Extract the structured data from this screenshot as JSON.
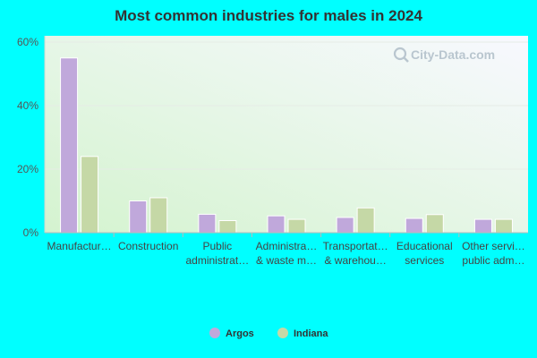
{
  "chart_data": {
    "type": "bar",
    "title": "Most common industries for males in 2024",
    "categories": [
      "Manufactur…",
      "Construction",
      "Public administrat…",
      "Administra… & waste m…",
      "Transportat… & warehou…",
      "Educational services",
      "Other servi… public adm…"
    ],
    "category_lines": [
      [
        "Manufactur…"
      ],
      [
        "Construction"
      ],
      [
        "Public",
        "administrat…"
      ],
      [
        "Administra…",
        "& waste m…"
      ],
      [
        "Transportat…",
        "& warehou…"
      ],
      [
        "Educational",
        "services"
      ],
      [
        "Other servi…",
        "public adm…"
      ]
    ],
    "series": [
      {
        "name": "Argos",
        "color": "#c0a8db",
        "values": [
          55,
          10,
          5.8,
          5.3,
          4.8,
          4.5,
          4.2
        ]
      },
      {
        "name": "Indiana",
        "color": "#c5d8a6",
        "values": [
          24,
          11,
          3.8,
          4.2,
          7.8,
          5.7,
          4.2
        ]
      }
    ],
    "ylim": [
      0,
      60
    ],
    "yticks": [
      0,
      20,
      40,
      60
    ],
    "ytick_labels": [
      "0%",
      "20%",
      "40%",
      "60%"
    ],
    "xlabel": "",
    "ylabel": "",
    "grid": true,
    "legend_position": "bottom-center"
  },
  "watermark": {
    "text": "City-Data.com",
    "icon": "magnifier-icon"
  }
}
